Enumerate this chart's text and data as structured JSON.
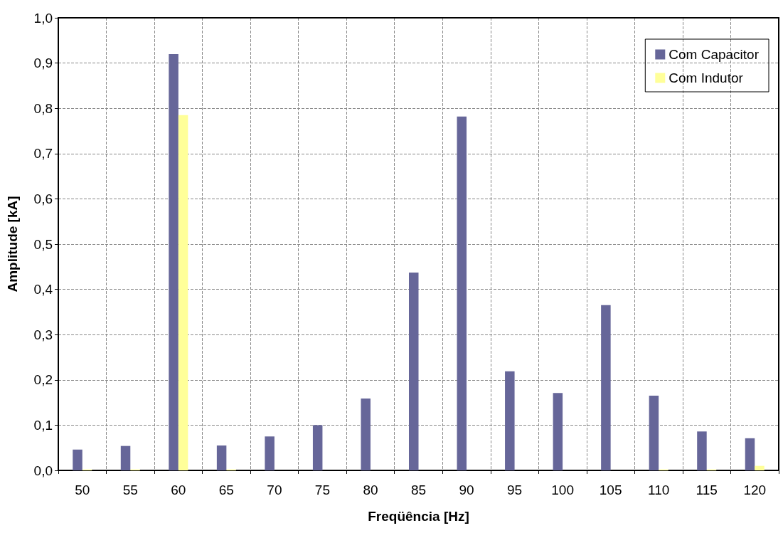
{
  "chart_data": {
    "type": "bar",
    "xlabel": "Freqüência [Hz]",
    "ylabel": "Amplitude [kA]",
    "categories": [
      "50",
      "55",
      "60",
      "65",
      "70",
      "75",
      "80",
      "85",
      "90",
      "95",
      "100",
      "105",
      "110",
      "115",
      "120"
    ],
    "series": [
      {
        "name": "Com Capacitor",
        "color": "#666699",
        "values": [
          0.046,
          0.054,
          0.92,
          0.055,
          0.075,
          0.1,
          0.159,
          0.437,
          0.782,
          0.219,
          0.171,
          0.365,
          0.165,
          0.086,
          0.071
        ]
      },
      {
        "name": "Com Indutor",
        "color": "#ffff99",
        "values": [
          0.002,
          0.002,
          0.785,
          0.002,
          null,
          null,
          null,
          null,
          null,
          null,
          null,
          null,
          0.002,
          0.002,
          0.01
        ]
      }
    ],
    "ylim": [
      0,
      1
    ],
    "yticks": [
      {
        "value": 0,
        "label": "0,0"
      },
      {
        "value": 0.1,
        "label": "0,1"
      },
      {
        "value": 0.2,
        "label": "0,2"
      },
      {
        "value": 0.3,
        "label": "0,3"
      },
      {
        "value": 0.4,
        "label": "0,4"
      },
      {
        "value": 0.5,
        "label": "0,5"
      },
      {
        "value": 0.6,
        "label": "0,6"
      },
      {
        "value": 0.7,
        "label": "0,7"
      },
      {
        "value": 0.8,
        "label": "0,8"
      },
      {
        "value": 0.9,
        "label": "0,9"
      },
      {
        "value": 1,
        "label": "1,0"
      }
    ],
    "grid": true,
    "legend": "top right"
  }
}
